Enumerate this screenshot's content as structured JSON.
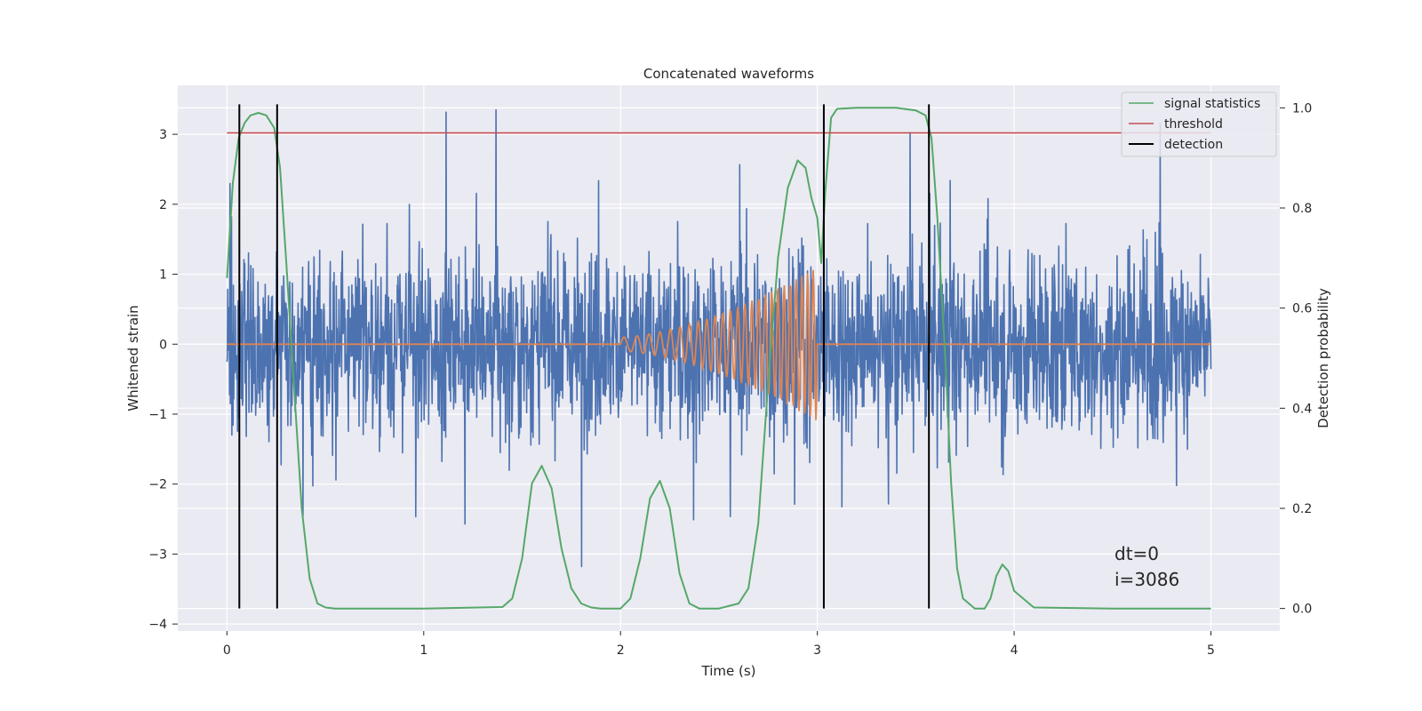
{
  "chart_data": {
    "type": "line",
    "title": "Concatenated waveforms",
    "xlabel": "Time (s)",
    "ylabel": "Whitened strain",
    "y2label": "Detection probability",
    "xlim": [
      -0.25,
      5.35
    ],
    "ylim": [
      -4.1,
      3.7
    ],
    "y2lim": [
      -0.045,
      1.045
    ],
    "xticks": [
      0,
      1,
      2,
      3,
      4,
      5
    ],
    "yticks": [
      -4,
      -3,
      -2,
      -1,
      0,
      1,
      2,
      3
    ],
    "y2ticks": [
      0.0,
      0.2,
      0.4,
      0.6,
      0.8,
      1.0
    ],
    "grid": true,
    "legend_position": "top-right",
    "colors": {
      "strain": "#4c72b0",
      "template": "#dd8452",
      "signal_statistics": "#55a868",
      "threshold": "#c44e52",
      "detection": "#000000",
      "background": "#eaeaf2",
      "grid": "#ffffff"
    },
    "series": [
      {
        "name": "signal statistics",
        "axis": "right",
        "x": [
          0.0,
          0.03,
          0.06,
          0.09,
          0.12,
          0.16,
          0.2,
          0.24,
          0.27,
          0.3,
          0.34,
          0.38,
          0.42,
          0.46,
          0.5,
          0.55,
          0.6,
          1.0,
          1.4,
          1.45,
          1.5,
          1.55,
          1.6,
          1.65,
          1.7,
          1.75,
          1.8,
          1.85,
          1.9,
          2.0,
          2.05,
          2.1,
          2.15,
          2.2,
          2.25,
          2.3,
          2.35,
          2.4,
          2.5,
          2.6,
          2.65,
          2.7,
          2.75,
          2.8,
          2.85,
          2.9,
          2.94,
          2.97,
          3.0,
          3.02,
          3.04,
          3.07,
          3.1,
          3.2,
          3.4,
          3.5,
          3.55,
          3.58,
          3.61,
          3.65,
          3.68,
          3.71,
          3.74,
          3.8,
          3.85,
          3.88,
          3.91,
          3.94,
          3.97,
          4.0,
          4.1,
          4.5,
          5.0
        ],
        "y": [
          0.66,
          0.85,
          0.94,
          0.97,
          0.985,
          0.99,
          0.985,
          0.96,
          0.88,
          0.7,
          0.45,
          0.2,
          0.06,
          0.01,
          0.002,
          0.0,
          0.0,
          0.0,
          0.003,
          0.02,
          0.1,
          0.25,
          0.285,
          0.24,
          0.12,
          0.04,
          0.01,
          0.002,
          0.0,
          0.0,
          0.02,
          0.1,
          0.22,
          0.255,
          0.2,
          0.07,
          0.01,
          0.0,
          0.0,
          0.01,
          0.04,
          0.17,
          0.45,
          0.7,
          0.84,
          0.895,
          0.88,
          0.82,
          0.78,
          0.69,
          0.83,
          0.98,
          0.998,
          1.0,
          1.0,
          0.995,
          0.985,
          0.94,
          0.78,
          0.5,
          0.25,
          0.08,
          0.02,
          0.0,
          0.0,
          0.02,
          0.065,
          0.088,
          0.075,
          0.035,
          0.002,
          0.0,
          0.0
        ]
      },
      {
        "name": "threshold",
        "axis": "right",
        "x": [
          0,
          5
        ],
        "y": [
          0.95,
          0.95
        ]
      },
      {
        "name": "detection",
        "axis": "right",
        "x": [
          0.063,
          0.255,
          3.033,
          3.567
        ],
        "y_range": [
          0.0,
          1.0
        ]
      }
    ]
  },
  "annotation": {
    "dt": "dt=0",
    "i": "i=3086"
  }
}
